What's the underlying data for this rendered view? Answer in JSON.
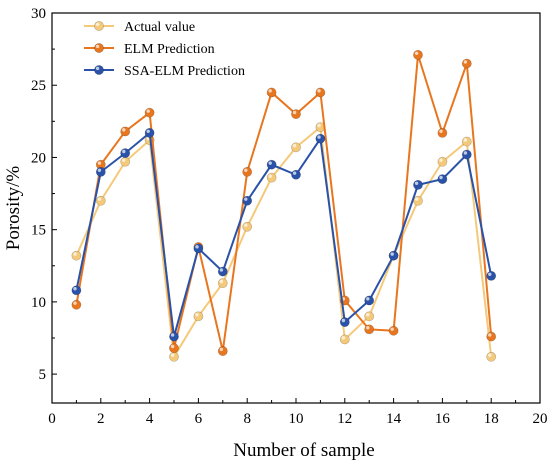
{
  "chart_data": {
    "type": "line",
    "xlabel": "Number of sample",
    "ylabel": "Porosity/%",
    "xlim": [
      0,
      20
    ],
    "ylim": [
      3,
      30
    ],
    "x_ticks": [
      0,
      2,
      4,
      6,
      8,
      10,
      12,
      14,
      16,
      18,
      20
    ],
    "y_ticks": [
      5,
      10,
      15,
      20,
      25,
      30
    ],
    "grid": false,
    "legend_position": "top-left",
    "x": [
      1,
      2,
      3,
      4,
      5,
      6,
      7,
      8,
      9,
      10,
      11,
      12,
      13,
      14,
      15,
      16,
      17,
      18
    ],
    "series": [
      {
        "name": "Actual value",
        "color": "#f5c97a",
        "values": [
          13.2,
          17.0,
          19.7,
          21.2,
          6.2,
          9.0,
          11.3,
          15.2,
          18.6,
          20.7,
          22.1,
          7.4,
          9.0,
          13.2,
          17.0,
          19.7,
          21.1,
          6.2
        ]
      },
      {
        "name": "ELM Prediction",
        "color": "#e8761f",
        "values": [
          9.8,
          19.5,
          21.8,
          23.1,
          6.8,
          13.8,
          6.6,
          19.0,
          24.5,
          23.0,
          24.5,
          10.1,
          8.1,
          8.0,
          27.1,
          21.7,
          26.5,
          7.6
        ]
      },
      {
        "name": "SSA-ELM Prediction",
        "color": "#2a52a8",
        "values": [
          10.8,
          19.0,
          20.3,
          21.7,
          7.6,
          13.7,
          12.1,
          17.0,
          19.5,
          18.8,
          21.3,
          8.6,
          10.1,
          13.2,
          18.1,
          18.5,
          20.2,
          11.8
        ]
      }
    ]
  }
}
